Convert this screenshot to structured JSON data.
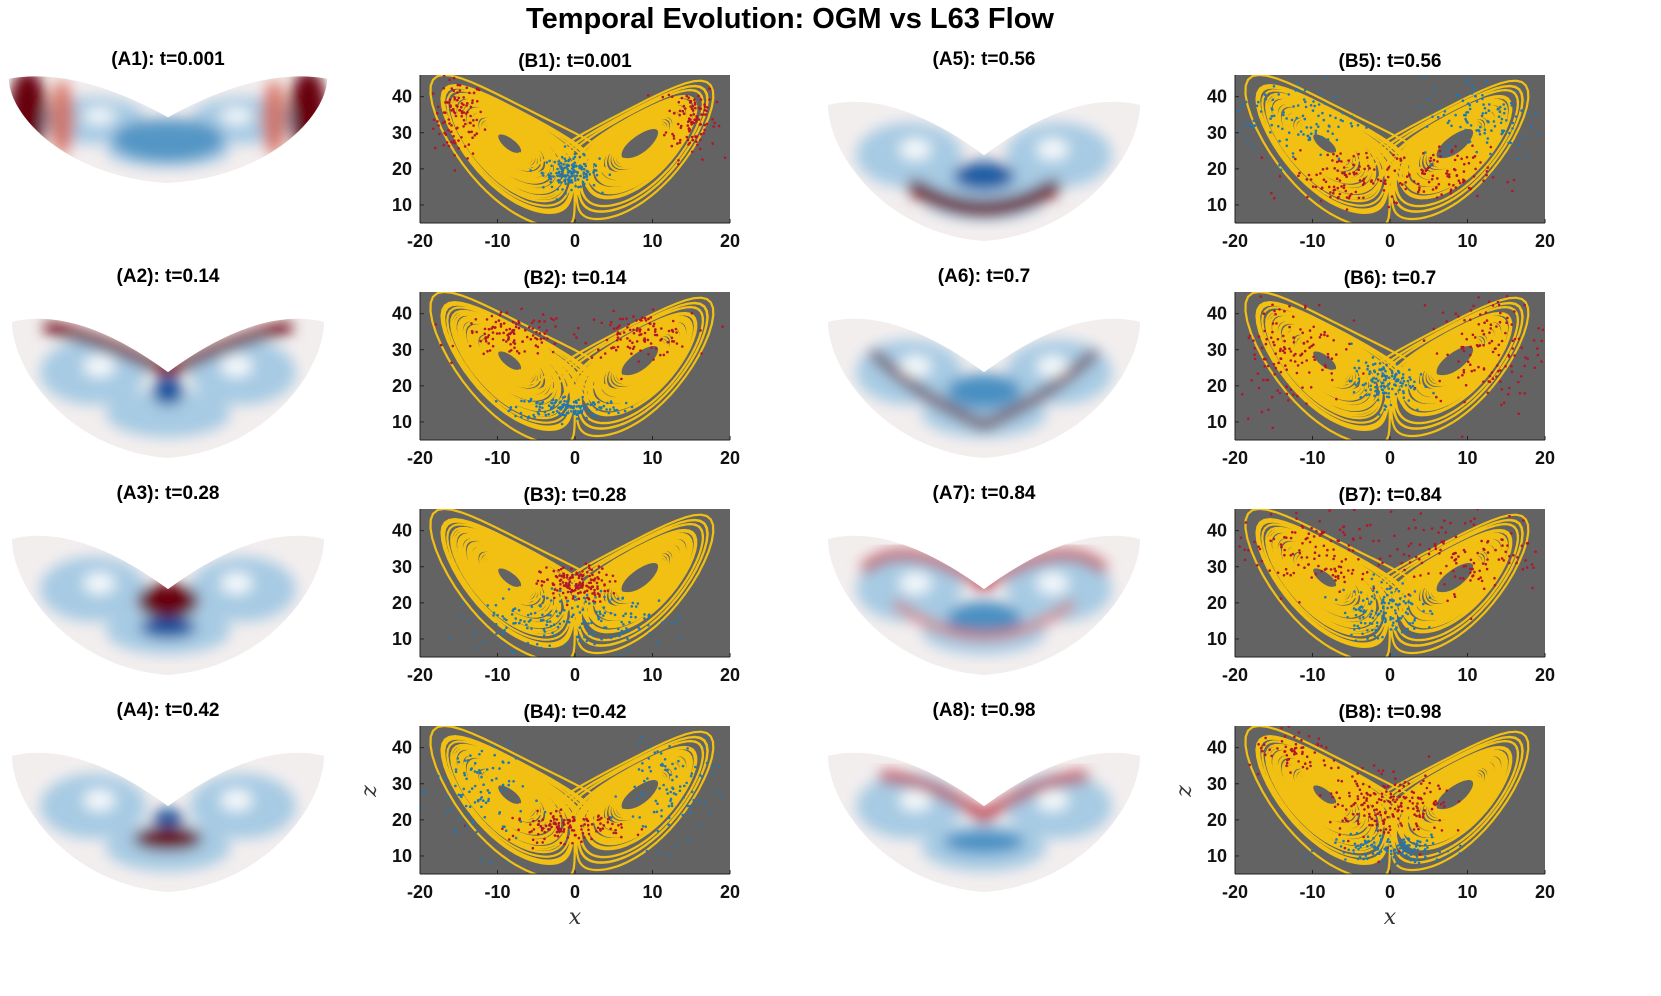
{
  "figure_title": "Temporal Evolution: OGM vs L63 Flow",
  "colors": {
    "attractor": "#F2C012",
    "plot_bg": "#636363",
    "red_particles": "#B3152B",
    "blue_particles": "#1F77B4",
    "dark_red": "#670010",
    "mid_red": "#B2182B",
    "light_red": "#D6604D",
    "light_blue": "#9EC7E2",
    "mid_blue": "#4A90C2",
    "dark_blue": "#0B4F9C"
  },
  "a_panels": [
    {
      "title": "(A1): t=0.001",
      "pattern": "wings-red-edges"
    },
    {
      "title": "(A2): t=0.14",
      "pattern": "red-v-blue-core"
    },
    {
      "title": "(A3): t=0.28",
      "pattern": "red-center-blob"
    },
    {
      "title": "(A4): t=0.42",
      "pattern": "red-lower-blob"
    },
    {
      "title": "(A5): t=0.56",
      "pattern": "red-bottom-arc"
    },
    {
      "title": "(A6): t=0.7",
      "pattern": "red-thin-arc"
    },
    {
      "title": "(A7): t=0.84",
      "pattern": "red-outer-ring"
    },
    {
      "title": "(A8): t=0.98",
      "pattern": "red-inner-v"
    }
  ],
  "chart_data": [
    {
      "type": "scatter",
      "title": "(B1): t=0.001",
      "xlabel": "",
      "ylabel": "",
      "xlim": [
        -20,
        20
      ],
      "ylim": [
        5,
        46
      ],
      "xticks": [
        "-20",
        "-10",
        "0",
        "10",
        "20"
      ],
      "yticks": [
        "10",
        "20",
        "30",
        "40"
      ],
      "series": [
        {
          "name": "L63 attractor",
          "kind": "line"
        },
        {
          "name": "red particles",
          "kind": "scatter",
          "regions": [
            {
              "x": -15,
              "z": 34,
              "sx": 1.6,
              "sz": 5.5,
              "n": 110
            },
            {
              "x": 15,
              "z": 34,
              "sx": 1.6,
              "sz": 5.5,
              "n": 110
            }
          ]
        },
        {
          "name": "blue particles",
          "kind": "scatter",
          "regions": [
            {
              "x": -0.5,
              "z": 19,
              "sx": 1.8,
              "sz": 2.2,
              "n": 150
            }
          ]
        }
      ]
    },
    {
      "type": "scatter",
      "title": "(B2): t=0.14",
      "xlabel": "",
      "ylabel": "",
      "xlim": [
        -20,
        20
      ],
      "ylim": [
        5,
        46
      ],
      "xticks": [
        "-20",
        "-10",
        "0",
        "10",
        "20"
      ],
      "yticks": [
        "10",
        "20",
        "30",
        "40"
      ],
      "series": [
        {
          "name": "L63 attractor",
          "kind": "line"
        },
        {
          "name": "red particles",
          "kind": "scatter",
          "regions": [
            {
              "x": -8,
              "z": 34,
              "sx": 3.5,
              "sz": 3,
              "n": 110
            },
            {
              "x": 8,
              "z": 34,
              "sx": 3.5,
              "sz": 3,
              "n": 110
            }
          ]
        },
        {
          "name": "blue particles",
          "kind": "scatter",
          "regions": [
            {
              "x": -1,
              "z": 14,
              "sx": 3.5,
              "sz": 1.6,
              "n": 150
            }
          ]
        }
      ]
    },
    {
      "type": "scatter",
      "title": "(B3): t=0.28",
      "xlabel": "",
      "ylabel": "",
      "xlim": [
        -20,
        20
      ],
      "ylim": [
        5,
        46
      ],
      "xticks": [
        "-20",
        "-10",
        "0",
        "10",
        "20"
      ],
      "yticks": [
        "10",
        "20",
        "30",
        "40"
      ],
      "series": [
        {
          "name": "L63 attractor",
          "kind": "line"
        },
        {
          "name": "red particles",
          "kind": "scatter",
          "regions": [
            {
              "x": 0,
              "z": 25,
              "sx": 2.2,
              "sz": 2.5,
              "n": 150
            }
          ]
        },
        {
          "name": "blue particles",
          "kind": "scatter",
          "regions": [
            {
              "x": -5,
              "z": 15,
              "sx": 5,
              "sz": 4,
              "n": 90
            },
            {
              "x": 5,
              "z": 15,
              "sx": 5,
              "sz": 4,
              "n": 90
            }
          ]
        }
      ]
    },
    {
      "type": "scatter",
      "title": "(B4): t=0.42",
      "xlabel": "x",
      "ylabel": "z",
      "xlim": [
        -20,
        20
      ],
      "ylim": [
        5,
        46
      ],
      "xticks": [
        "-20",
        "-10",
        "0",
        "10",
        "20"
      ],
      "yticks": [
        "10",
        "20",
        "30",
        "40"
      ],
      "series": [
        {
          "name": "L63 attractor",
          "kind": "line"
        },
        {
          "name": "red particles",
          "kind": "scatter",
          "regions": [
            {
              "x": -1,
              "z": 18,
              "sx": 3.5,
              "sz": 2,
              "n": 130
            }
          ]
        },
        {
          "name": "blue particles",
          "kind": "scatter",
          "regions": [
            {
              "x": -12,
              "z": 28,
              "sx": 3,
              "sz": 8,
              "n": 100
            },
            {
              "x": 12,
              "z": 28,
              "sx": 3,
              "sz": 8,
              "n": 100
            }
          ]
        }
      ]
    },
    {
      "type": "scatter",
      "title": "(B5): t=0.56",
      "xlabel": "",
      "ylabel": "",
      "xlim": [
        -20,
        20
      ],
      "ylim": [
        5,
        46
      ],
      "xticks": [
        "-20",
        "-10",
        "0",
        "10",
        "20"
      ],
      "yticks": [
        "10",
        "20",
        "30",
        "40"
      ],
      "series": [
        {
          "name": "L63 attractor",
          "kind": "line"
        },
        {
          "name": "red particles",
          "kind": "scatter",
          "regions": [
            {
              "x": -6,
              "z": 18,
              "sx": 3.5,
              "sz": 4,
              "n": 100
            },
            {
              "x": 6,
              "z": 18,
              "sx": 3.5,
              "sz": 4,
              "n": 100
            }
          ]
        },
        {
          "name": "blue particles",
          "kind": "scatter",
          "regions": [
            {
              "x": -12,
              "z": 34,
              "sx": 4,
              "sz": 6,
              "n": 110
            },
            {
              "x": 12,
              "z": 34,
              "sx": 4,
              "sz": 6,
              "n": 110
            }
          ]
        }
      ]
    },
    {
      "type": "scatter",
      "title": "(B6): t=0.7",
      "xlabel": "",
      "ylabel": "",
      "xlim": [
        -20,
        20
      ],
      "ylim": [
        5,
        46
      ],
      "xticks": [
        "-20",
        "-10",
        "0",
        "10",
        "20"
      ],
      "yticks": [
        "10",
        "20",
        "30",
        "40"
      ],
      "series": [
        {
          "name": "L63 attractor",
          "kind": "line"
        },
        {
          "name": "red particles",
          "kind": "scatter",
          "regions": [
            {
              "x": -13,
              "z": 30,
              "sx": 3.5,
              "sz": 8,
              "n": 130
            },
            {
              "x": 13,
              "z": 30,
              "sx": 3.5,
              "sz": 8,
              "n": 130
            }
          ]
        },
        {
          "name": "blue particles",
          "kind": "scatter",
          "regions": [
            {
              "x": -1,
              "z": 21,
              "sx": 2,
              "sz": 3,
              "n": 130
            }
          ]
        }
      ]
    },
    {
      "type": "scatter",
      "title": "(B7): t=0.84",
      "xlabel": "",
      "ylabel": "",
      "xlim": [
        -20,
        20
      ],
      "ylim": [
        5,
        46
      ],
      "xticks": [
        "-20",
        "-10",
        "0",
        "10",
        "20"
      ],
      "yticks": [
        "10",
        "20",
        "30",
        "40"
      ],
      "series": [
        {
          "name": "L63 attractor",
          "kind": "line"
        },
        {
          "name": "red particles",
          "kind": "scatter",
          "regions": [
            {
              "x": -10,
              "z": 34,
              "sx": 5,
              "sz": 6,
              "n": 130
            },
            {
              "x": 10,
              "z": 34,
              "sx": 5,
              "sz": 6,
              "n": 130
            }
          ]
        },
        {
          "name": "blue particles",
          "kind": "scatter",
          "regions": [
            {
              "x": -1,
              "z": 18,
              "sx": 2.5,
              "sz": 4,
              "n": 140
            }
          ]
        }
      ]
    },
    {
      "type": "scatter",
      "title": "(B8): t=0.98",
      "xlabel": "x",
      "ylabel": "z",
      "xlim": [
        -20,
        20
      ],
      "ylim": [
        5,
        46
      ],
      "xticks": [
        "-20",
        "-10",
        "0",
        "10",
        "20"
      ],
      "yticks": [
        "10",
        "20",
        "30",
        "40"
      ],
      "series": [
        {
          "name": "L63 attractor",
          "kind": "line"
        },
        {
          "name": "red particles",
          "kind": "scatter",
          "regions": [
            {
              "x": -3,
              "z": 24,
              "sx": 2.5,
              "sz": 5,
              "n": 100
            },
            {
              "x": 3,
              "z": 24,
              "sx": 2.5,
              "sz": 5,
              "n": 100
            },
            {
              "x": -12,
              "z": 38,
              "sx": 3,
              "sz": 3,
              "n": 60
            }
          ]
        },
        {
          "name": "blue particles",
          "kind": "scatter",
          "regions": [
            {
              "x": 0,
              "z": 12,
              "sx": 4,
              "sz": 2,
              "n": 130
            }
          ]
        }
      ]
    }
  ]
}
